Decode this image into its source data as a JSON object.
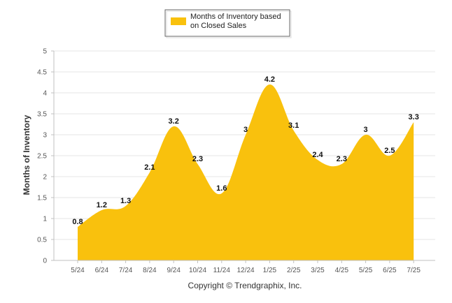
{
  "chart_data": {
    "type": "area",
    "categories": [
      "5/24",
      "6/24",
      "7/24",
      "8/24",
      "9/24",
      "10/24",
      "11/24",
      "12/24",
      "1/25",
      "2/25",
      "3/25",
      "4/25",
      "5/25",
      "6/25",
      "7/25"
    ],
    "series": [
      {
        "name": "Months of Inventory based on Closed Sales",
        "values": [
          0.8,
          1.2,
          1.3,
          2.1,
          3.2,
          2.3,
          1.6,
          3,
          4.2,
          3.1,
          2.4,
          2.3,
          3,
          2.5,
          3.3
        ],
        "labels": [
          "0.8",
          "1.2",
          "1.3",
          "2.1",
          "3.2",
          "2.3",
          "1.6",
          "3",
          "4.2",
          "3.1",
          "2.4",
          "2.3",
          "3",
          "2.5",
          "3.3"
        ]
      }
    ],
    "legend": {
      "lines": [
        "Months of Inventory based",
        "on Closed Sales"
      ],
      "position": "top-center"
    },
    "ylabel": "Months of Inventory",
    "xlabel": "",
    "ylim": [
      0,
      5
    ],
    "yticks": [
      "0",
      "0.5",
      "1",
      "1.5",
      "2",
      "2.5",
      "3",
      "3.5",
      "4",
      "4.5",
      "5"
    ],
    "grid": true,
    "colors": {
      "fill": "#F9C10D",
      "grid": "#E6E6E6",
      "axis": "#C0C0C0"
    },
    "footer": "Copyright © Trendgraphix, Inc."
  }
}
